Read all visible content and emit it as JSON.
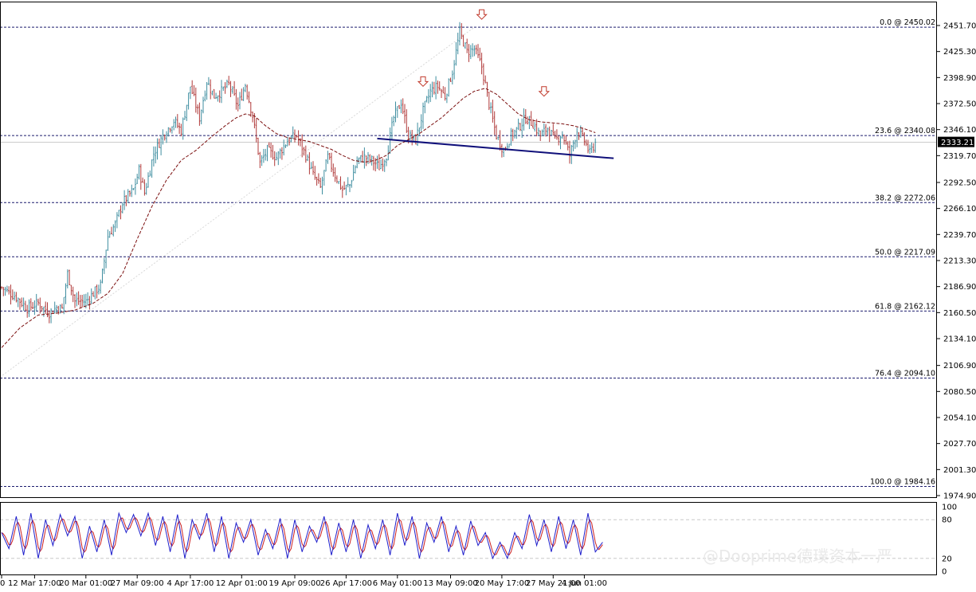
{
  "watermark": "@Dooprime德璞资本一严",
  "colors": {
    "up": "#3f8ea0",
    "down": "#b03a3a",
    "ma": "#7b0f0f",
    "fib": "#1c1c6e",
    "neckline": "#10107a",
    "stoch_main": "#1f1fcc",
    "stoch_signal": "#cc1f1f",
    "arrow": "#c0392b",
    "grid": "#c8c8c8",
    "price_tag_bg": "#000000"
  },
  "chart_data": [
    {
      "type": "candlestick",
      "title": "",
      "y_range": [
        1974.9,
        2451.7
      ],
      "y_ticks": [
        "2451.70",
        "2425.30",
        "2398.90",
        "2372.50",
        "2346.10",
        "2319.70",
        "2292.50",
        "2266.10",
        "2239.70",
        "2213.30",
        "2186.90",
        "2160.50",
        "2134.10",
        "2106.90",
        "2080.50",
        "2054.10",
        "2027.70",
        "2001.30",
        "1974.90"
      ],
      "current_price": "2333.21",
      "x_ticks": [
        "0",
        "12 Mar 17:00",
        "20 Mar 01:00",
        "27 Mar 09:00",
        "4 Apr 17:00",
        "12 Apr 01:00",
        "19 Apr 09:00",
        "26 Apr 17:00",
        "6 May 01:00",
        "13 May 09:00",
        "20 May 17:00",
        "27 May 21:00",
        "4 Jun 01:00"
      ],
      "fibonacci": [
        {
          "label": "0.0 @ 2450.02",
          "price": 2450.02
        },
        {
          "label": "23.6 @ 2340.08",
          "price": 2340.08
        },
        {
          "label": "38.2 @ 2272.06",
          "price": 2272.06
        },
        {
          "label": "50.0 @ 2217.09",
          "price": 2217.09
        },
        {
          "label": "61.8 @ 2162.12",
          "price": 2162.12
        },
        {
          "label": "76.4 @ 2094.10",
          "price": 2094.1
        },
        {
          "label": "100.0 @ 1984.16",
          "price": 1984.16
        }
      ],
      "close_anchors": [
        [
          0,
          2186
        ],
        [
          8,
          2176
        ],
        [
          14,
          2165
        ],
        [
          20,
          2170
        ],
        [
          26,
          2160
        ],
        [
          30,
          2166
        ],
        [
          33,
          2164
        ],
        [
          36,
          2200
        ],
        [
          40,
          2172
        ],
        [
          46,
          2172
        ],
        [
          50,
          2180
        ],
        [
          54,
          2188
        ],
        [
          58,
          2238
        ],
        [
          62,
          2250
        ],
        [
          66,
          2272
        ],
        [
          72,
          2285
        ],
        [
          75,
          2305
        ],
        [
          78,
          2282
        ],
        [
          83,
          2322
        ],
        [
          88,
          2340
        ],
        [
          94,
          2355
        ],
        [
          98,
          2345
        ],
        [
          103,
          2390
        ],
        [
          108,
          2358
        ],
        [
          112,
          2395
        ],
        [
          116,
          2380
        ],
        [
          120,
          2385
        ],
        [
          124,
          2392
        ],
        [
          129,
          2370
        ],
        [
          133,
          2392
        ],
        [
          137,
          2360
        ],
        [
          141,
          2312
        ],
        [
          145,
          2325
        ],
        [
          150,
          2318
        ],
        [
          156,
          2335
        ],
        [
          161,
          2340
        ],
        [
          166,
          2320
        ],
        [
          170,
          2300
        ],
        [
          174,
          2287
        ],
        [
          178,
          2318
        ],
        [
          182,
          2300
        ],
        [
          186,
          2285
        ],
        [
          190,
          2290
        ],
        [
          194,
          2315
        ],
        [
          198,
          2318
        ],
        [
          202,
          2315
        ],
        [
          206,
          2308
        ],
        [
          210,
          2320
        ],
        [
          214,
          2358
        ],
        [
          218,
          2374
        ],
        [
          222,
          2340
        ],
        [
          226,
          2335
        ],
        [
          230,
          2365
        ],
        [
          234,
          2385
        ],
        [
          238,
          2390
        ],
        [
          242,
          2380
        ],
        [
          246,
          2405
        ],
        [
          250,
          2445
        ],
        [
          254,
          2425
        ],
        [
          258,
          2428
        ],
        [
          262,
          2410
        ],
        [
          266,
          2372
        ],
        [
          270,
          2340
        ],
        [
          274,
          2325
        ],
        [
          278,
          2340
        ],
        [
          282,
          2348
        ],
        [
          286,
          2358
        ],
        [
          290,
          2352
        ],
        [
          294,
          2340
        ],
        [
          298,
          2348
        ],
        [
          302,
          2335
        ],
        [
          306,
          2342
        ],
        [
          310,
          2320
        ],
        [
          314,
          2345
        ],
        [
          318,
          2335
        ],
        [
          321,
          2322
        ],
        [
          324,
          2333
        ]
      ],
      "ma_points": [
        [
          0,
          2125
        ],
        [
          10,
          2145
        ],
        [
          20,
          2158
        ],
        [
          30,
          2160
        ],
        [
          40,
          2163
        ],
        [
          50,
          2170
        ],
        [
          58,
          2180
        ],
        [
          66,
          2200
        ],
        [
          74,
          2235
        ],
        [
          82,
          2268
        ],
        [
          90,
          2295
        ],
        [
          98,
          2315
        ],
        [
          106,
          2325
        ],
        [
          114,
          2338
        ],
        [
          122,
          2350
        ],
        [
          128,
          2358
        ],
        [
          133,
          2362
        ],
        [
          138,
          2360
        ],
        [
          144,
          2350
        ],
        [
          150,
          2342
        ],
        [
          156,
          2338
        ],
        [
          162,
          2336
        ],
        [
          168,
          2334
        ],
        [
          174,
          2330
        ],
        [
          180,
          2326
        ],
        [
          186,
          2320
        ],
        [
          192,
          2315
        ],
        [
          198,
          2313
        ],
        [
          204,
          2315
        ],
        [
          210,
          2320
        ],
        [
          216,
          2330
        ],
        [
          222,
          2336
        ],
        [
          228,
          2342
        ],
        [
          234,
          2350
        ],
        [
          240,
          2358
        ],
        [
          246,
          2368
        ],
        [
          252,
          2378
        ],
        [
          258,
          2385
        ],
        [
          264,
          2388
        ],
        [
          270,
          2382
        ],
        [
          276,
          2372
        ],
        [
          282,
          2362
        ],
        [
          288,
          2356
        ],
        [
          294,
          2354
        ],
        [
          300,
          2353
        ],
        [
          306,
          2352
        ],
        [
          312,
          2350
        ],
        [
          318,
          2347
        ],
        [
          324,
          2343
        ]
      ],
      "trendline": {
        "start": [
          2331,
          2336
        ],
        "end": [
          2316,
          2318
        ]
      },
      "neckline": {
        "x_start": 205,
        "y_start": 2337,
        "x_end": 334,
        "y_end": 2317
      },
      "arrows_x": [
        230,
        262,
        296
      ],
      "arrow_prices": [
        2390,
        2458,
        2380
      ]
    },
    {
      "type": "line",
      "title": "",
      "y_range": [
        0,
        100
      ],
      "y_ticks": [
        "100",
        "80",
        "20",
        "0"
      ],
      "levels": [
        80,
        20
      ],
      "main_anchors": [
        [
          0,
          60
        ],
        [
          4,
          35
        ],
        [
          8,
          85
        ],
        [
          12,
          25
        ],
        [
          16,
          90
        ],
        [
          20,
          20
        ],
        [
          24,
          80
        ],
        [
          28,
          40
        ],
        [
          32,
          88
        ],
        [
          36,
          55
        ],
        [
          40,
          85
        ],
        [
          44,
          20
        ],
        [
          48,
          70
        ],
        [
          52,
          30
        ],
        [
          56,
          80
        ],
        [
          60,
          25
        ],
        [
          64,
          90
        ],
        [
          68,
          60
        ],
        [
          72,
          88
        ],
        [
          76,
          55
        ],
        [
          80,
          90
        ],
        [
          84,
          40
        ],
        [
          88,
          85
        ],
        [
          92,
          30
        ],
        [
          96,
          88
        ],
        [
          100,
          20
        ],
        [
          104,
          80
        ],
        [
          108,
          50
        ],
        [
          112,
          90
        ],
        [
          116,
          30
        ],
        [
          120,
          85
        ],
        [
          124,
          20
        ],
        [
          128,
          75
        ],
        [
          132,
          45
        ],
        [
          136,
          80
        ],
        [
          140,
          25
        ],
        [
          144,
          65
        ],
        [
          148,
          35
        ],
        [
          152,
          82
        ],
        [
          156,
          20
        ],
        [
          160,
          80
        ],
        [
          164,
          30
        ],
        [
          168,
          70
        ],
        [
          172,
          45
        ],
        [
          176,
          85
        ],
        [
          180,
          25
        ],
        [
          184,
          75
        ],
        [
          188,
          30
        ],
        [
          192,
          80
        ],
        [
          196,
          20
        ],
        [
          200,
          72
        ],
        [
          204,
          35
        ],
        [
          208,
          80
        ],
        [
          212,
          25
        ],
        [
          216,
          90
        ],
        [
          220,
          40
        ],
        [
          224,
          85
        ],
        [
          228,
          20
        ],
        [
          232,
          75
        ],
        [
          236,
          45
        ],
        [
          240,
          85
        ],
        [
          244,
          30
        ],
        [
          248,
          70
        ],
        [
          252,
          25
        ],
        [
          256,
          78
        ],
        [
          260,
          40
        ],
        [
          264,
          60
        ],
        [
          268,
          20
        ],
        [
          272,
          45
        ],
        [
          276,
          20
        ],
        [
          280,
          60
        ],
        [
          284,
          35
        ],
        [
          288,
          88
        ],
        [
          292,
          40
        ],
        [
          296,
          80
        ],
        [
          300,
          30
        ],
        [
          304,
          85
        ],
        [
          308,
          35
        ],
        [
          312,
          80
        ],
        [
          316,
          25
        ],
        [
          320,
          90
        ],
        [
          324,
          30
        ],
        [
          328,
          45
        ]
      ]
    }
  ]
}
